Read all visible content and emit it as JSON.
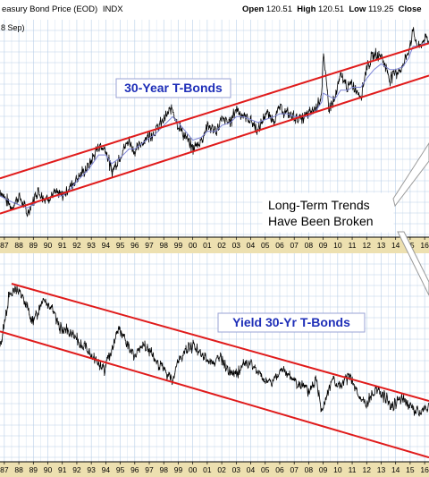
{
  "header": {
    "title": "easury Bond Price (EOD)",
    "symbol": "INDX",
    "sub": "8 Sep)",
    "open_label": "Open",
    "open_value": "120.51",
    "high_label": "High",
    "high_value": "120.51",
    "low_label": "Low",
    "low_value": "119.25",
    "close_label": "Close"
  },
  "colors": {
    "background": "#ffffff",
    "grid": "#b9d0e8",
    "axis_band": "#ede0b0",
    "price": "#000000",
    "moving_average": "#7d83d6",
    "trend_line": "#e01b1b",
    "annotation_text": "#1f2fb8"
  },
  "annotation": "Long-Term Trends\nHave Been Broken",
  "chart_data": [
    {
      "type": "line",
      "title": "30-Year T-Bonds",
      "x_tick_labels": [
        "87",
        "88",
        "89",
        "90",
        "91",
        "92",
        "93",
        "94",
        "95",
        "96",
        "97",
        "98",
        "99",
        "00",
        "01",
        "02",
        "03",
        "04",
        "05",
        "06",
        "07",
        "08",
        "09",
        "10",
        "11",
        "12",
        "13",
        "14",
        "15",
        "16"
      ],
      "x": [
        1986.7,
        1987.5,
        1988.0,
        1988.6,
        1989.3,
        1989.8,
        1990.5,
        1991.0,
        1991.5,
        1992.0,
        1992.8,
        1993.5,
        1994.0,
        1994.4,
        1995.0,
        1995.6,
        1996.0,
        1996.8,
        1997.4,
        1998.0,
        1998.6,
        1999.0,
        1999.5,
        2000.0,
        2000.6,
        2001.0,
        2001.6,
        2002.0,
        2002.6,
        2003.0,
        2003.5,
        2004.0,
        2004.5,
        2005.0,
        2005.6,
        2006.0,
        2006.5,
        2007.0,
        2007.5,
        2008.0,
        2008.5,
        2008.9,
        2009.0,
        2009.4,
        2009.8,
        2010.2,
        2010.7,
        2011.0,
        2011.6,
        2012.0,
        2012.5,
        2013.0,
        2013.6,
        2014.0,
        2014.5,
        2014.9,
        2015.2,
        2015.6,
        2016.0,
        2016.3
      ],
      "values": [
        86,
        80,
        84,
        78,
        86,
        83,
        85,
        84,
        87,
        90,
        94,
        101,
        100,
        92,
        98,
        103,
        99,
        104,
        106,
        110,
        114,
        108,
        104,
        100,
        103,
        108,
        106,
        110,
        109,
        114,
        111,
        110,
        106,
        112,
        110,
        114,
        112,
        111,
        110,
        112,
        114,
        119,
        132,
        114,
        117,
        125,
        121,
        122,
        118,
        128,
        132,
        132,
        124,
        126,
        128,
        134,
        140,
        134,
        138,
        136
      ],
      "moving_average_values": [
        84,
        82,
        81,
        80,
        82,
        83,
        84,
        84,
        86,
        89,
        93,
        98,
        98,
        95,
        97,
        100,
        100,
        103,
        105,
        108,
        111,
        109,
        106,
        103,
        104,
        106,
        106,
        108,
        109,
        111,
        111,
        110,
        109,
        110,
        111,
        112,
        112,
        111,
        111,
        111,
        113,
        116,
        119,
        118,
        117,
        120,
        120,
        121,
        121,
        124,
        127,
        129,
        127,
        127,
        128,
        131,
        135,
        135,
        136,
        136
      ],
      "trend_lines": [
        {
          "name": "upper",
          "x": [
            1986.7,
            2016.3
          ],
          "values": [
            90,
            136
          ]
        },
        {
          "name": "lower",
          "x": [
            1986.7,
            2016.3
          ],
          "values": [
            78,
            125
          ]
        }
      ],
      "x_range": [
        1986.7,
        2016.3
      ],
      "ylim": [
        70,
        144
      ],
      "grid": true
    },
    {
      "type": "line",
      "title": "Yield 30-Yr T-Bonds",
      "x_tick_labels": [
        "87",
        "88",
        "89",
        "90",
        "91",
        "92",
        "93",
        "94",
        "95",
        "96",
        "97",
        "98",
        "99",
        "00",
        "01",
        "02",
        "03",
        "04",
        "05",
        "06",
        "07",
        "08",
        "09",
        "10",
        "11",
        "12",
        "13",
        "14",
        "15",
        "16"
      ],
      "x": [
        1986.7,
        1987.3,
        1987.9,
        1988.5,
        1989.0,
        1989.7,
        1990.3,
        1990.8,
        1991.4,
        1992.0,
        1992.7,
        1993.4,
        1993.9,
        1994.4,
        1994.9,
        1995.5,
        1996.0,
        1996.6,
        1997.3,
        1998.0,
        1998.6,
        1999.0,
        1999.6,
        2000.1,
        2000.7,
        2001.3,
        2001.9,
        2002.4,
        2003.0,
        2003.6,
        2004.2,
        2004.8,
        2005.4,
        2006.0,
        2006.6,
        2007.3,
        2008.0,
        2008.5,
        2008.9,
        2009.2,
        2009.6,
        2010.2,
        2010.8,
        2011.4,
        2012.0,
        2012.6,
        2013.2,
        2013.8,
        2014.4,
        2015.0,
        2015.6,
        2016.2
      ],
      "values": [
        40,
        52,
        54,
        50,
        46,
        52,
        49,
        45,
        44,
        42,
        40,
        37,
        35,
        40,
        45,
        41,
        38,
        41,
        38,
        35,
        33,
        37,
        40,
        41,
        38,
        37,
        38,
        35,
        34,
        37,
        36,
        33,
        32,
        35,
        34,
        32,
        30,
        33,
        26,
        29,
        33,
        31,
        34,
        29,
        27,
        31,
        29,
        27,
        29,
        27,
        25,
        27
      ],
      "trend_lines": [
        {
          "name": "upper",
          "x": [
            1987.5,
            2016.3
          ],
          "values": [
            55,
            28
          ]
        },
        {
          "name": "lower",
          "x": [
            1986.7,
            2016.3
          ],
          "values": [
            44,
            15
          ]
        }
      ],
      "x_range": [
        1986.7,
        2016.3
      ],
      "ylim": [
        14,
        62
      ],
      "grid": true
    }
  ]
}
